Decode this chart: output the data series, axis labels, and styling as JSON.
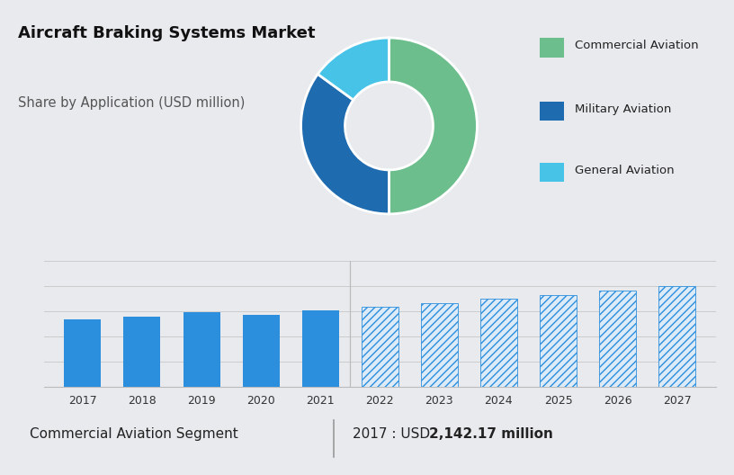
{
  "title": "Aircraft Braking Systems Market",
  "subtitle": "Share by Application (USD million)",
  "title_fontsize": 13,
  "subtitle_fontsize": 10.5,
  "top_bg_color": "#d0d8e4",
  "bottom_bg_color": "#e8eaed",
  "bar_area_bg_color": "#e8eaed",
  "donut_values": [
    50,
    35,
    15
  ],
  "donut_colors": [
    "#6dbe8d",
    "#1f6bb0",
    "#47c3e8"
  ],
  "donut_labels": [
    "Commercial Aviation",
    "Military Aviation",
    "General Aviation"
  ],
  "legend_marker_colors": [
    "#6dbe8d",
    "#1f6bb0",
    "#47c3e8"
  ],
  "bar_years": [
    2017,
    2018,
    2019,
    2020,
    2021,
    2022,
    2023,
    2024,
    2025,
    2026,
    2027
  ],
  "bar_values": [
    2142,
    2250,
    2370,
    2300,
    2430,
    2550,
    2680,
    2800,
    2930,
    3060,
    3200
  ],
  "bar_solid_color": "#2b8fde",
  "bar_hatch_color": "#2b8fde",
  "bar_hatch_bg": "#ddeaf7",
  "divider_year": 2021,
  "footer_left": "Commercial Aviation Segment",
  "footer_right_prefix": "2017 : USD ",
  "footer_right_bold": "2,142.17 million",
  "footer_fontsize": 11,
  "ymin": 0,
  "ymax": 4000
}
